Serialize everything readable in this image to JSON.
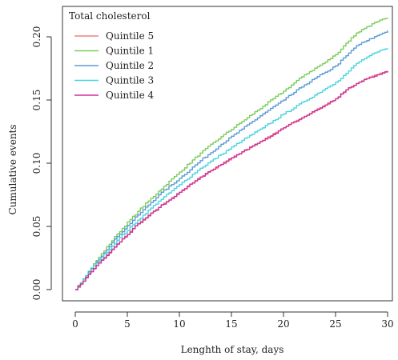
{
  "chart_data": {
    "type": "line",
    "step": true,
    "title": "",
    "xlabel": "Lenghth of stay, days",
    "ylabel": "Cumulative events",
    "xlim": [
      0,
      30
    ],
    "ylim": [
      0,
      0.22
    ],
    "xticks": [
      0,
      5,
      10,
      15,
      20,
      25,
      30
    ],
    "yticks": [
      0.0,
      0.05,
      0.1,
      0.15,
      0.2
    ],
    "xtick_labels": [
      "0",
      "5",
      "10",
      "15",
      "20",
      "25",
      "30"
    ],
    "ytick_labels": [
      "0.00",
      "0.05",
      "0.10",
      "0.15",
      "0.20"
    ],
    "grid": false,
    "legend": {
      "title": "Total cholesterol",
      "position": "top-left"
    },
    "x": [
      0,
      2,
      4,
      6,
      8,
      10,
      12,
      14,
      16,
      18,
      20,
      22,
      24,
      25,
      26,
      27,
      28,
      29,
      30
    ],
    "series": [
      {
        "name": "Quintile 5",
        "color": "#f08080",
        "values": [
          0,
          0.019,
          0.036,
          0.052,
          0.065,
          0.077,
          0.089,
          0.099,
          0.109,
          0.118,
          0.128,
          0.137,
          0.146,
          0.151,
          0.158,
          0.163,
          0.167,
          0.17,
          0.173
        ]
      },
      {
        "name": "Quintile 1",
        "color": "#7ccd5a",
        "values": [
          0,
          0.023,
          0.044,
          0.062,
          0.078,
          0.093,
          0.108,
          0.121,
          0.133,
          0.145,
          0.157,
          0.17,
          0.18,
          0.186,
          0.195,
          0.203,
          0.208,
          0.212,
          0.215
        ]
      },
      {
        "name": "Quintile 2",
        "color": "#5b9bd5",
        "values": [
          0,
          0.022,
          0.042,
          0.059,
          0.075,
          0.088,
          0.102,
          0.115,
          0.127,
          0.139,
          0.15,
          0.162,
          0.172,
          0.177,
          0.185,
          0.193,
          0.197,
          0.201,
          0.205
        ]
      },
      {
        "name": "Quintile 3",
        "color": "#4ad4e0",
        "values": [
          0,
          0.021,
          0.039,
          0.055,
          0.07,
          0.083,
          0.096,
          0.107,
          0.118,
          0.128,
          0.139,
          0.149,
          0.159,
          0.164,
          0.171,
          0.179,
          0.184,
          0.188,
          0.191
        ]
      },
      {
        "name": "Quintile 4",
        "color": "#cc3399",
        "values": [
          0,
          0.019,
          0.036,
          0.052,
          0.065,
          0.077,
          0.089,
          0.099,
          0.109,
          0.118,
          0.128,
          0.137,
          0.146,
          0.151,
          0.158,
          0.163,
          0.167,
          0.17,
          0.173
        ]
      }
    ]
  }
}
